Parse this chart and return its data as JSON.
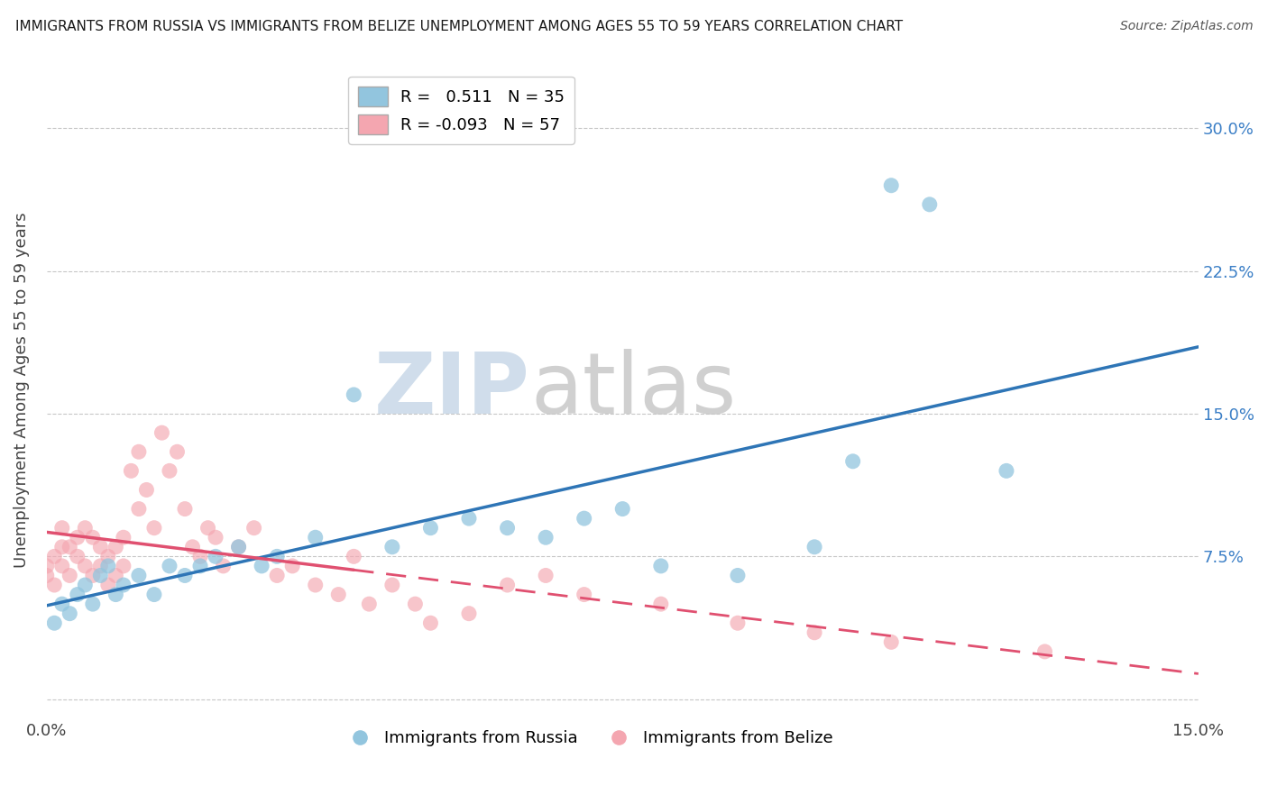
{
  "title": "IMMIGRANTS FROM RUSSIA VS IMMIGRANTS FROM BELIZE UNEMPLOYMENT AMONG AGES 55 TO 59 YEARS CORRELATION CHART",
  "source": "Source: ZipAtlas.com",
  "ylabel": "Unemployment Among Ages 55 to 59 years",
  "xlim": [
    0.0,
    0.15
  ],
  "ylim": [
    -0.01,
    0.335
  ],
  "xticks": [
    0.0,
    0.025,
    0.05,
    0.075,
    0.1,
    0.125,
    0.15
  ],
  "xticklabels": [
    "0.0%",
    "",
    "",
    "",
    "",
    "",
    "15.0%"
  ],
  "yticks": [
    0.0,
    0.075,
    0.15,
    0.225,
    0.3
  ],
  "yticklabels_left": [
    "",
    "",
    "",
    "",
    ""
  ],
  "yticklabels_right": [
    "",
    "7.5%",
    "15.0%",
    "22.5%",
    "30.0%"
  ],
  "russia_R": 0.511,
  "russia_N": 35,
  "belize_R": -0.093,
  "belize_N": 57,
  "russia_color": "#92C5DE",
  "belize_color": "#F4A6B0",
  "russia_line_color": "#2E75B6",
  "belize_line_color": "#E05070",
  "background_color": "#ffffff",
  "grid_color": "#b0b0b0",
  "watermark_zip": "ZIP",
  "watermark_atlas": "atlas",
  "russia_x": [
    0.001,
    0.002,
    0.003,
    0.004,
    0.005,
    0.006,
    0.007,
    0.008,
    0.009,
    0.01,
    0.012,
    0.014,
    0.016,
    0.018,
    0.02,
    0.022,
    0.025,
    0.028,
    0.03,
    0.035,
    0.04,
    0.045,
    0.05,
    0.055,
    0.06,
    0.065,
    0.07,
    0.075,
    0.08,
    0.09,
    0.1,
    0.105,
    0.11,
    0.115,
    0.125
  ],
  "russia_y": [
    0.04,
    0.05,
    0.045,
    0.055,
    0.06,
    0.05,
    0.065,
    0.07,
    0.055,
    0.06,
    0.065,
    0.055,
    0.07,
    0.065,
    0.07,
    0.075,
    0.08,
    0.07,
    0.075,
    0.085,
    0.16,
    0.08,
    0.09,
    0.095,
    0.09,
    0.085,
    0.095,
    0.1,
    0.07,
    0.065,
    0.08,
    0.125,
    0.27,
    0.26,
    0.12
  ],
  "belize_x": [
    0.0,
    0.0,
    0.001,
    0.001,
    0.002,
    0.002,
    0.002,
    0.003,
    0.003,
    0.004,
    0.004,
    0.005,
    0.005,
    0.006,
    0.006,
    0.007,
    0.007,
    0.008,
    0.008,
    0.009,
    0.009,
    0.01,
    0.01,
    0.011,
    0.012,
    0.012,
    0.013,
    0.014,
    0.015,
    0.016,
    0.017,
    0.018,
    0.019,
    0.02,
    0.021,
    0.022,
    0.023,
    0.025,
    0.027,
    0.03,
    0.032,
    0.035,
    0.038,
    0.04,
    0.042,
    0.045,
    0.048,
    0.05,
    0.055,
    0.06,
    0.065,
    0.07,
    0.08,
    0.09,
    0.1,
    0.11,
    0.13
  ],
  "belize_y": [
    0.065,
    0.07,
    0.06,
    0.075,
    0.07,
    0.08,
    0.09,
    0.065,
    0.08,
    0.075,
    0.085,
    0.07,
    0.09,
    0.065,
    0.085,
    0.07,
    0.08,
    0.06,
    0.075,
    0.08,
    0.065,
    0.085,
    0.07,
    0.12,
    0.1,
    0.13,
    0.11,
    0.09,
    0.14,
    0.12,
    0.13,
    0.1,
    0.08,
    0.075,
    0.09,
    0.085,
    0.07,
    0.08,
    0.09,
    0.065,
    0.07,
    0.06,
    0.055,
    0.075,
    0.05,
    0.06,
    0.05,
    0.04,
    0.045,
    0.06,
    0.065,
    0.055,
    0.05,
    0.04,
    0.035,
    0.03,
    0.025
  ]
}
